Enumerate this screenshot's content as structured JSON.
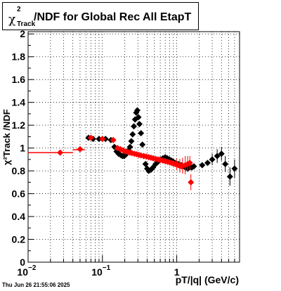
{
  "title": {
    "chi": "χ",
    "sup": "2",
    "sub": "Track",
    "rest": "/NDF for Global Rec All EtapT"
  },
  "ylabel": "χ²Track /NDF",
  "xlabel": "pT/|q| (GeV/c)",
  "datestamp": "Thu Jun 26 21:55:06 2025",
  "chart_data": {
    "type": "scatter",
    "xscale": "log",
    "xlim": [
      0.01,
      7
    ],
    "ylim": [
      0,
      2.02
    ],
    "grid": true,
    "yticks": [
      "0",
      "0.2",
      "0.4",
      "0.6",
      "0.8",
      "1",
      "1.2",
      "1.4",
      "1.6",
      "1.8",
      "2"
    ],
    "xticks": [
      {
        "base": "10",
        "exp": "−2",
        "value": 0.01
      },
      {
        "base": "10",
        "exp": "−1",
        "value": 0.1
      },
      {
        "base": "1",
        "exp": "",
        "value": 1
      }
    ],
    "series": [
      {
        "color": "#000000",
        "points": [
          {
            "x": 0.065,
            "y": 1.09
          },
          {
            "x": 0.075,
            "y": 1.08
          },
          {
            "x": 0.09,
            "y": 1.08
          },
          {
            "x": 0.11,
            "y": 1.08
          },
          {
            "x": 0.13,
            "y": 1.07
          },
          {
            "x": 0.145,
            "y": 1.01
          },
          {
            "x": 0.155,
            "y": 0.97
          },
          {
            "x": 0.165,
            "y": 0.95
          },
          {
            "x": 0.175,
            "y": 0.94
          },
          {
            "x": 0.185,
            "y": 0.93
          },
          {
            "x": 0.195,
            "y": 0.93
          },
          {
            "x": 0.205,
            "y": 0.94
          },
          {
            "x": 0.215,
            "y": 0.96
          },
          {
            "x": 0.225,
            "y": 0.98
          },
          {
            "x": 0.235,
            "y": 1.01
          },
          {
            "x": 0.245,
            "y": 1.06
          },
          {
            "x": 0.255,
            "y": 1.12
          },
          {
            "x": 0.265,
            "y": 1.19
          },
          {
            "x": 0.275,
            "y": 1.25
          },
          {
            "x": 0.285,
            "y": 1.31
          },
          {
            "x": 0.295,
            "y": 1.33
          },
          {
            "x": 0.305,
            "y": 1.27
          },
          {
            "x": 0.315,
            "y": 1.21
          },
          {
            "x": 0.33,
            "y": 1.13
          },
          {
            "x": 0.345,
            "y": 1.03
          },
          {
            "x": 0.36,
            "y": 0.93
          },
          {
            "x": 0.38,
            "y": 0.86
          },
          {
            "x": 0.4,
            "y": 0.82
          },
          {
            "x": 0.42,
            "y": 0.8
          },
          {
            "x": 0.45,
            "y": 0.81
          },
          {
            "x": 0.48,
            "y": 0.83
          },
          {
            "x": 0.52,
            "y": 0.86
          },
          {
            "x": 0.56,
            "y": 0.88
          },
          {
            "x": 0.6,
            "y": 0.9
          },
          {
            "x": 0.65,
            "y": 0.91
          },
          {
            "x": 0.7,
            "y": 0.92
          },
          {
            "x": 0.75,
            "y": 0.91
          },
          {
            "x": 0.8,
            "y": 0.9
          },
          {
            "x": 0.85,
            "y": 0.89
          },
          {
            "x": 0.9,
            "y": 0.88
          },
          {
            "x": 0.95,
            "y": 0.87
          },
          {
            "x": 1.0,
            "y": 0.86
          },
          {
            "x": 1.05,
            "y": 0.86
          },
          {
            "x": 1.1,
            "y": 0.85
          },
          {
            "x": 1.15,
            "y": 0.85
          },
          {
            "x": 1.2,
            "y": 0.84
          },
          {
            "x": 1.3,
            "y": 0.83
          },
          {
            "x": 1.4,
            "y": 0.82
          },
          {
            "x": 1.5,
            "y": 0.83
          },
          {
            "x": 1.6,
            "y": 0.83
          },
          {
            "x": 1.7,
            "y": 0.84
          },
          {
            "x": 2.2,
            "y": 0.85
          },
          {
            "x": 2.6,
            "y": 0.87
          },
          {
            "x": 3.0,
            "y": 0.9
          },
          {
            "x": 3.5,
            "y": 0.93
          },
          {
            "x": 4.0,
            "y": 0.95
          },
          {
            "x": 4.5,
            "y": 0.86
          },
          {
            "x": 5.2,
            "y": 0.75
          },
          {
            "x": 6.0,
            "y": 0.82
          }
        ],
        "errors": [
          {
            "x": 3.0,
            "lo": 0.05,
            "hi": 0.05
          },
          {
            "x": 3.5,
            "lo": 0.06,
            "hi": 0.06
          },
          {
            "x": 4.0,
            "lo": 0.06,
            "hi": 0.06
          },
          {
            "x": 4.5,
            "lo": 0.07,
            "hi": 0.07
          },
          {
            "x": 5.2,
            "lo": 0.08,
            "hi": 0.08
          },
          {
            "x": 6.0,
            "lo": 0.08,
            "hi": 0.08
          }
        ]
      },
      {
        "color": "#ff0000",
        "line_points": [
          {
            "x": 0.01,
            "x2": 0.04,
            "y": 0.96
          },
          {
            "x": 0.04,
            "x2": 0.058,
            "y": 0.985
          }
        ],
        "points": [
          {
            "x": 0.027,
            "y": 0.96
          },
          {
            "x": 0.05,
            "y": 0.99
          },
          {
            "x": 0.07,
            "y": 1.09
          },
          {
            "x": 0.1,
            "y": 1.08
          },
          {
            "x": 0.14,
            "y": 1.07
          },
          {
            "x": 0.16,
            "y": 1.0
          },
          {
            "x": 0.175,
            "y": 0.99
          },
          {
            "x": 0.19,
            "y": 0.98
          },
          {
            "x": 0.205,
            "y": 0.97
          },
          {
            "x": 0.22,
            "y": 0.965
          },
          {
            "x": 0.235,
            "y": 0.96
          },
          {
            "x": 0.25,
            "y": 0.955
          },
          {
            "x": 0.27,
            "y": 0.95
          },
          {
            "x": 0.29,
            "y": 0.945
          },
          {
            "x": 0.31,
            "y": 0.94
          },
          {
            "x": 0.33,
            "y": 0.935
          },
          {
            "x": 0.36,
            "y": 0.93
          },
          {
            "x": 0.39,
            "y": 0.925
          },
          {
            "x": 0.42,
            "y": 0.92
          },
          {
            "x": 0.45,
            "y": 0.915
          },
          {
            "x": 0.48,
            "y": 0.91
          },
          {
            "x": 0.52,
            "y": 0.905
          },
          {
            "x": 0.56,
            "y": 0.9
          },
          {
            "x": 0.6,
            "y": 0.895
          },
          {
            "x": 0.65,
            "y": 0.89
          },
          {
            "x": 0.7,
            "y": 0.885
          },
          {
            "x": 0.75,
            "y": 0.88
          },
          {
            "x": 0.8,
            "y": 0.875
          },
          {
            "x": 0.85,
            "y": 0.87
          },
          {
            "x": 0.9,
            "y": 0.865
          },
          {
            "x": 0.95,
            "y": 0.86
          },
          {
            "x": 1.0,
            "y": 0.855
          },
          {
            "x": 1.05,
            "y": 0.85
          },
          {
            "x": 1.1,
            "y": 0.845
          },
          {
            "x": 1.15,
            "y": 0.84
          },
          {
            "x": 1.2,
            "y": 0.845
          },
          {
            "x": 1.3,
            "y": 0.85
          },
          {
            "x": 1.4,
            "y": 0.86
          },
          {
            "x": 1.5,
            "y": 0.87
          },
          {
            "x": 1.55,
            "y": 0.7
          }
        ],
        "errors": [
          {
            "x": 1.0,
            "lo": 0.05,
            "hi": 0.05
          },
          {
            "x": 1.1,
            "lo": 0.06,
            "hi": 0.06
          },
          {
            "x": 1.2,
            "lo": 0.07,
            "hi": 0.07
          },
          {
            "x": 1.3,
            "lo": 0.08,
            "hi": 0.08
          },
          {
            "x": 1.4,
            "lo": 0.07,
            "hi": 0.07
          },
          {
            "x": 1.5,
            "lo": 0.06,
            "hi": 0.06
          },
          {
            "x": 1.55,
            "lo": 0.07,
            "hi": 0.07
          }
        ]
      }
    ]
  }
}
